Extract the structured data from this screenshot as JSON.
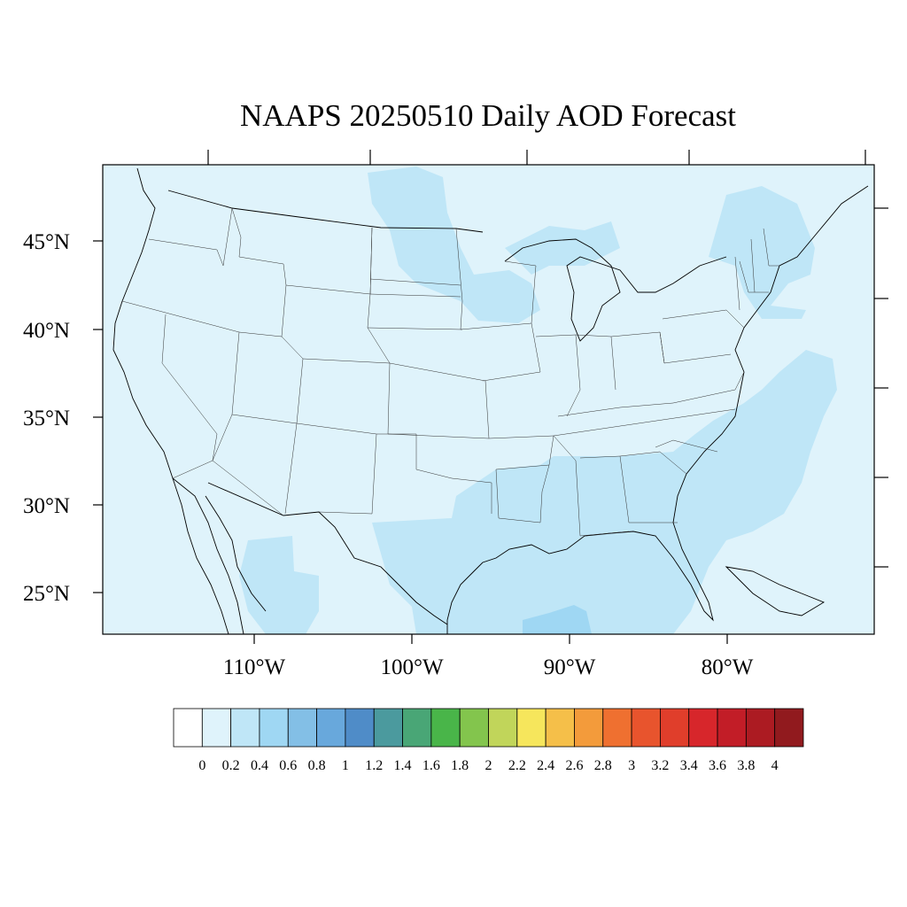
{
  "title": "NAAPS 20250510 Daily AOD Forecast",
  "map": {
    "background_color": "#dff3fb",
    "lat_ticks": [
      "45°N",
      "40°N",
      "35°N",
      "30°N",
      "25°N"
    ],
    "lon_ticks": [
      "110°W",
      "100°W",
      "90°W",
      "80°W"
    ]
  },
  "colorbar": {
    "colors": [
      "#ffffff",
      "#dff3fb",
      "#bfe6f7",
      "#9fd7f3",
      "#83bfe6",
      "#68a8dc",
      "#4f8cc8",
      "#4b9a9e",
      "#49a676",
      "#49b549",
      "#83c54d",
      "#c1d55a",
      "#f6e65c",
      "#f5bf49",
      "#f39b3b",
      "#ef7030",
      "#e8542d",
      "#e03e2b",
      "#d7262b",
      "#c21d27",
      "#ac1b22",
      "#911a1e"
    ],
    "labels": [
      "0",
      "0.2",
      "0.4",
      "0.6",
      "0.8",
      "1",
      "1.2",
      "1.4",
      "1.6",
      "1.8",
      "2",
      "2.2",
      "2.4",
      "2.6",
      "2.8",
      "3",
      "3.2",
      "3.4",
      "3.6",
      "3.8",
      "4"
    ]
  },
  "plume_colors": {
    "aod_0_2_0_4": "#bfe6f7",
    "aod_0_4_0_6": "#9fd7f3"
  }
}
